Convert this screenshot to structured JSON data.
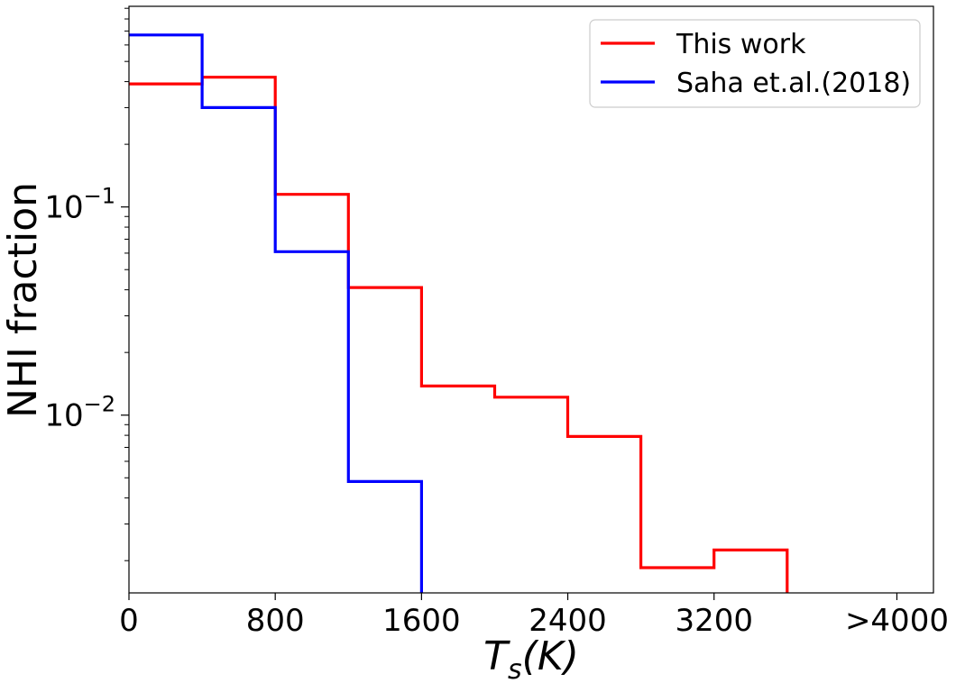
{
  "chart_data": {
    "type": "line",
    "ylabel": "NHI fraction",
    "xlabel_main": "T",
    "xlabel_sub": "s",
    "xlabel_rest": "(K)",
    "xlim": [
      0,
      4400
    ],
    "ylim": [
      0.0014,
      0.92
    ],
    "y_scale": "log",
    "x_ticks": [
      {
        "value": 0,
        "label": "0"
      },
      {
        "value": 800,
        "label": "800"
      },
      {
        "value": 1600,
        "label": "1600"
      },
      {
        "value": 2400,
        "label": "2400"
      },
      {
        "value": 3200,
        "label": "3200"
      },
      {
        "value": 4200,
        "label": ">4000"
      }
    ],
    "y_ticks": [
      {
        "value": 0.1,
        "base": "10",
        "exp": "−1"
      },
      {
        "value": 0.01,
        "base": "10",
        "exp": "−2"
      }
    ],
    "legend_position": "top-right",
    "grid": false,
    "series": [
      {
        "name": "This work",
        "color": "#ff0000",
        "bin_edges": [
          0,
          400,
          800,
          1200,
          1600,
          2000,
          2400,
          2800,
          3200,
          3600
        ],
        "values": [
          0.39,
          0.42,
          0.115,
          0.041,
          0.0138,
          0.0122,
          0.0079,
          0.00185,
          0.00225
        ]
      },
      {
        "name": "Saha et.al.(2018)",
        "color": "#0000ff",
        "bin_edges": [
          0,
          400,
          800,
          1200,
          1600
        ],
        "values": [
          0.67,
          0.3,
          0.061,
          0.0048
        ]
      }
    ]
  }
}
